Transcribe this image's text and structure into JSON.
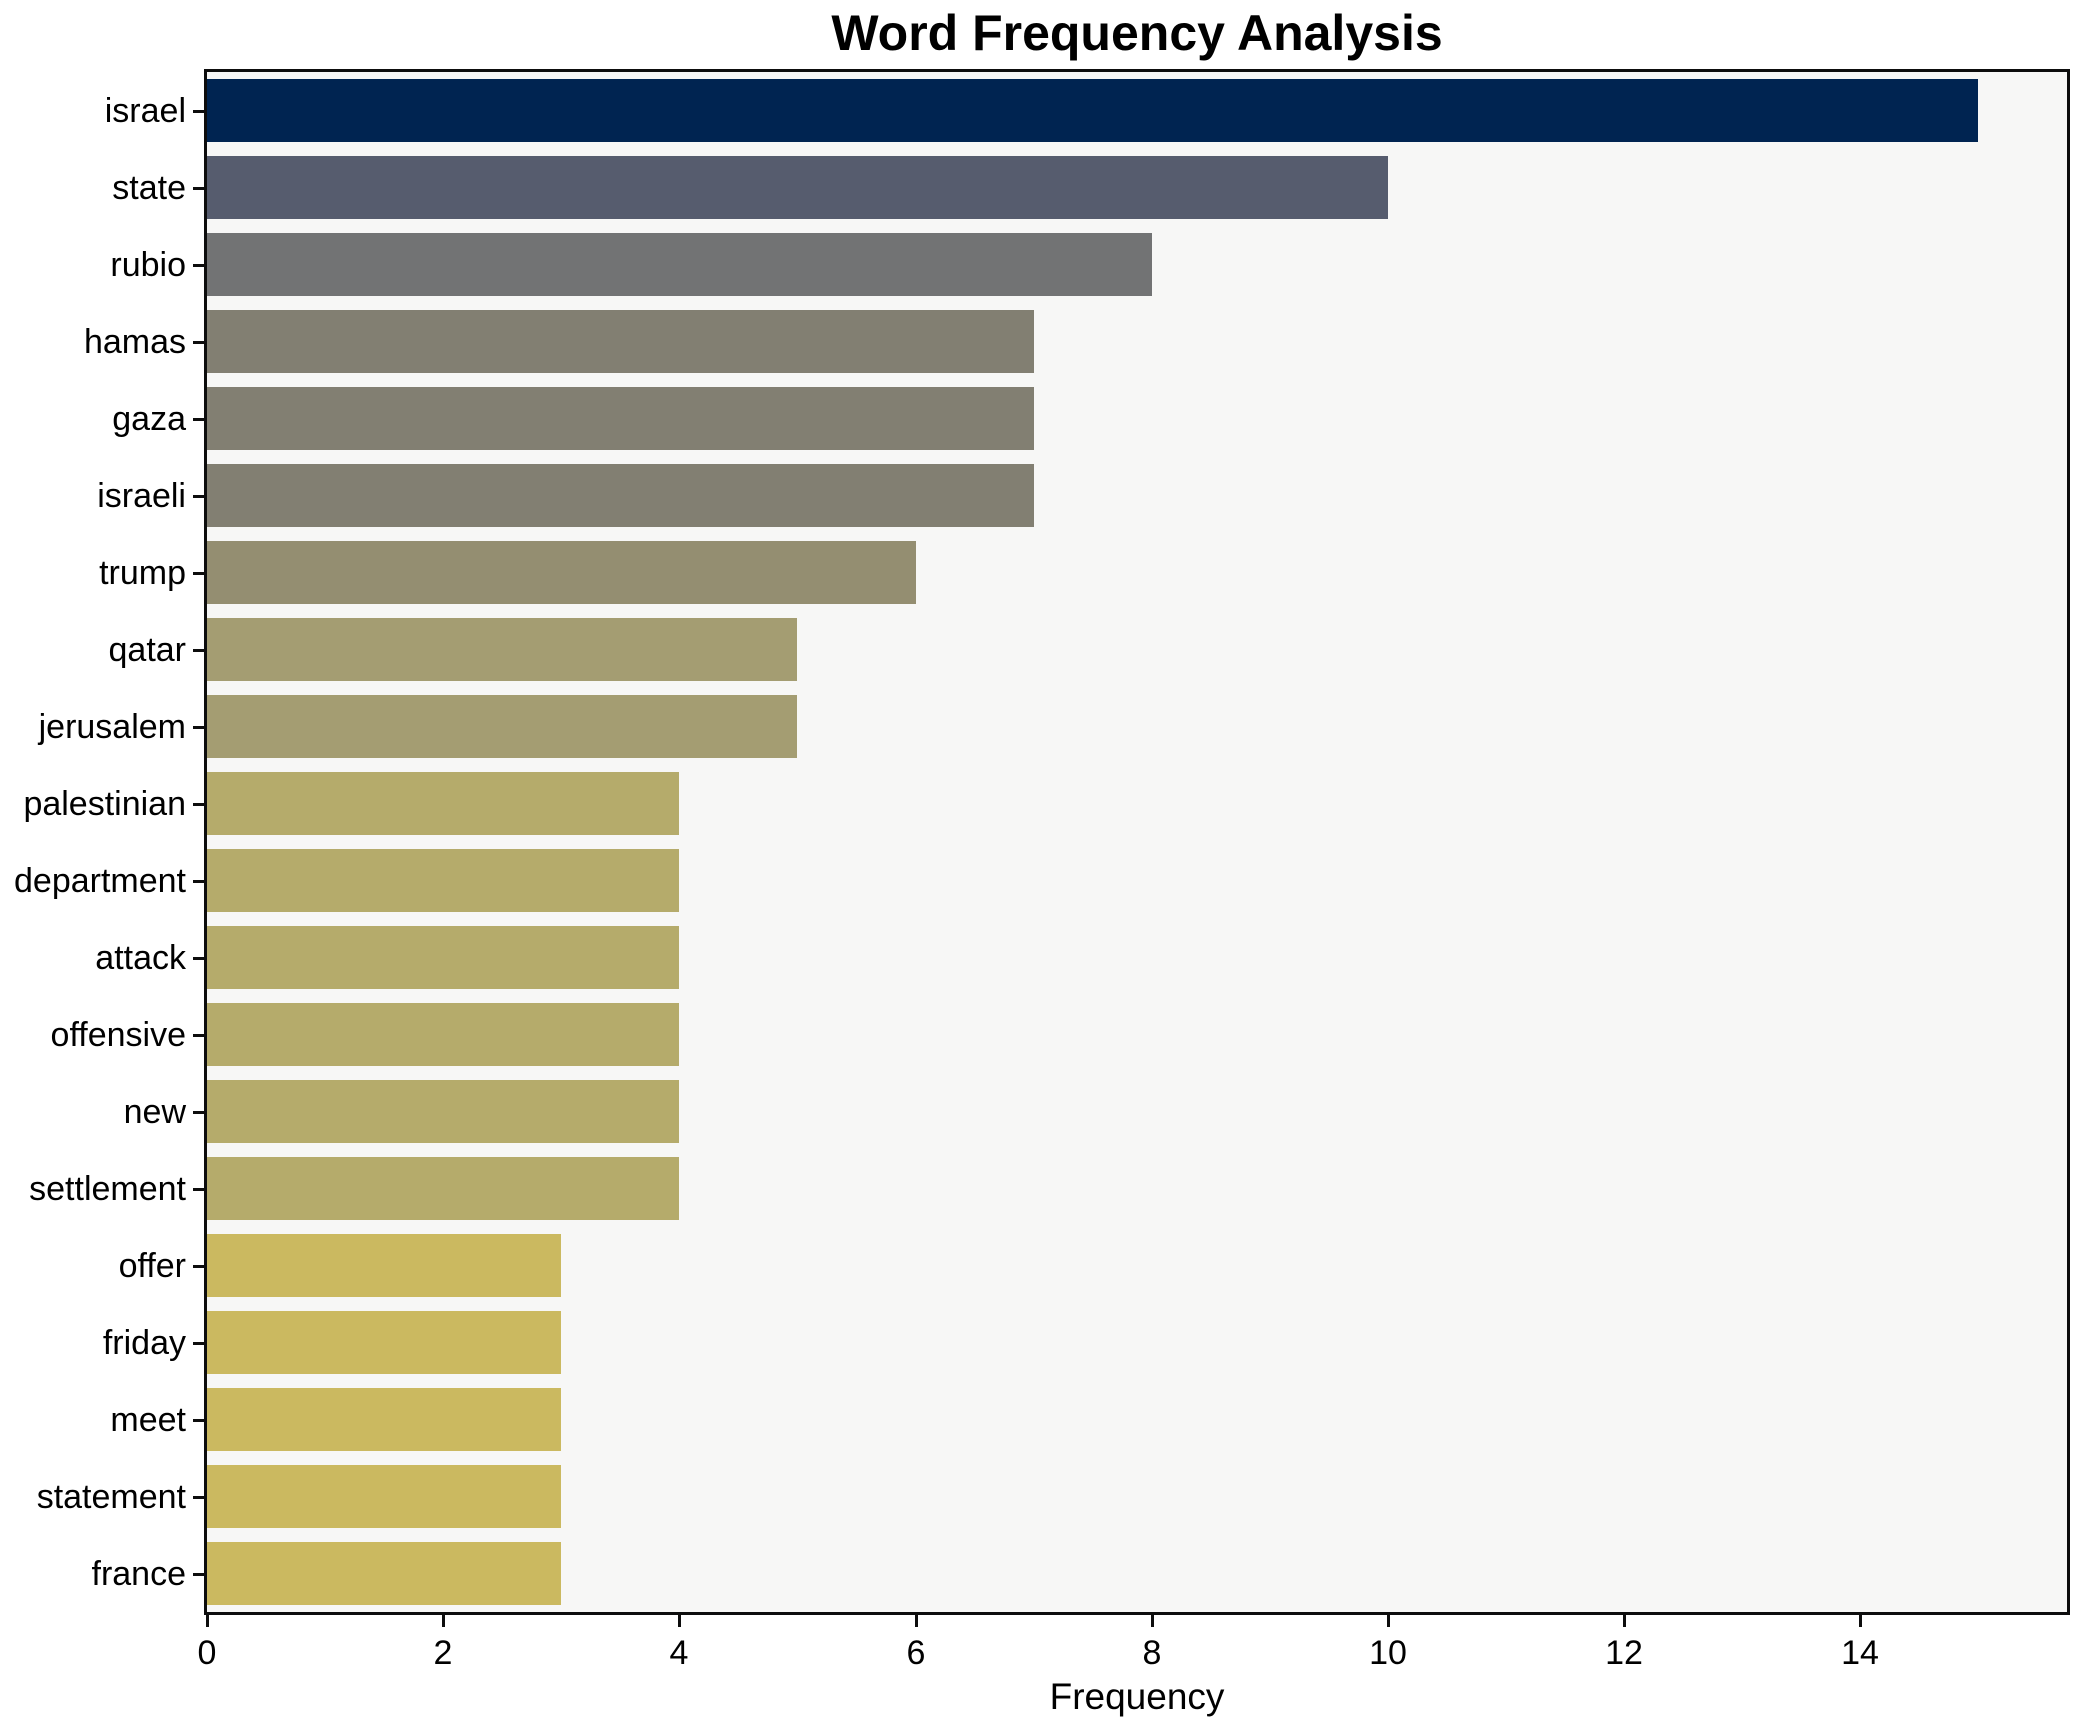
{
  "figure": {
    "title": "Word Frequency Analysis",
    "xlabel": "Frequency"
  },
  "chart_data": {
    "type": "bar",
    "orientation": "horizontal",
    "title": "Word Frequency Analysis",
    "xlabel": "Frequency",
    "ylabel": "",
    "categories": [
      "israel",
      "state",
      "rubio",
      "hamas",
      "gaza",
      "israeli",
      "trump",
      "qatar",
      "jerusalem",
      "palestinian",
      "department",
      "attack",
      "offensive",
      "new",
      "settlement",
      "offer",
      "friday",
      "meet",
      "statement",
      "france"
    ],
    "values": [
      15,
      10,
      8,
      7,
      7,
      7,
      6,
      5,
      5,
      4,
      4,
      4,
      4,
      4,
      4,
      3,
      3,
      3,
      3,
      3
    ],
    "bar_colors": [
      "#002451",
      "#565c6e",
      "#727374",
      "#827f72",
      "#827f72",
      "#827f72",
      "#948e71",
      "#a49d72",
      "#a49d72",
      "#b5ab6b",
      "#b5ab6b",
      "#b5ab6b",
      "#b5ab6b",
      "#b5ab6b",
      "#b5ab6b",
      "#cbb960",
      "#cbb960",
      "#cbb960",
      "#cbb960",
      "#cbb960"
    ],
    "xlim": [
      0,
      15.75
    ],
    "xticks": [
      0,
      2,
      4,
      6,
      8,
      10,
      12,
      14
    ],
    "grid": false,
    "legend_position": "none",
    "plot_background": "#f7f7f6",
    "spine_color": "#0d0d0d",
    "colormap_note": "cividis-reversed by value: high=navy, low=khaki"
  }
}
